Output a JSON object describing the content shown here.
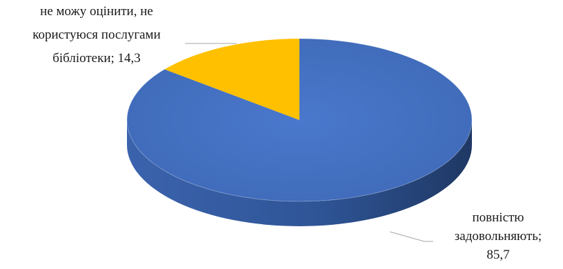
{
  "chart_data": {
    "type": "pie",
    "style": "3d",
    "slices": [
      {
        "label": "повністю задовольняють",
        "value": 85.7,
        "color": "#4472C4",
        "label_lines": [
          "повністю",
          "задовольняють;",
          "85,7"
        ]
      },
      {
        "label": "не можу оцінити, не користуюся послугами бібліотеки",
        "value": 14.3,
        "color": "#FFC000",
        "label_lines": [
          "не можу оцінити, не",
          "користуюся послугами",
          "бібліотеки; 14,3"
        ]
      }
    ]
  }
}
